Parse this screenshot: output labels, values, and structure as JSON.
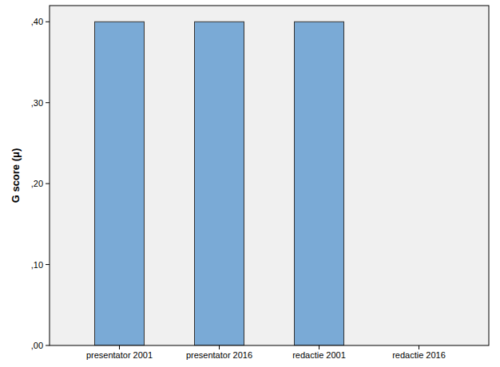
{
  "chart_data": {
    "type": "bar",
    "y_label": "G score (μ)",
    "categories": [
      "presentator 2001",
      "presentator 2016",
      "redactie 2001",
      "redactie 2016"
    ],
    "values": [
      0.4,
      0.4,
      0.4,
      0
    ],
    "color": "#7aaad6",
    "ylim": [
      0,
      0.42
    ],
    "yticks": [
      {
        "value": 0,
        "label": ",00"
      },
      {
        "value": 0.1,
        "label": ",10"
      },
      {
        "value": 0.2,
        "label": ",20"
      },
      {
        "value": 0.3,
        "label": ",30"
      },
      {
        "value": 0.4,
        "label": ",40"
      }
    ],
    "grid": false
  }
}
